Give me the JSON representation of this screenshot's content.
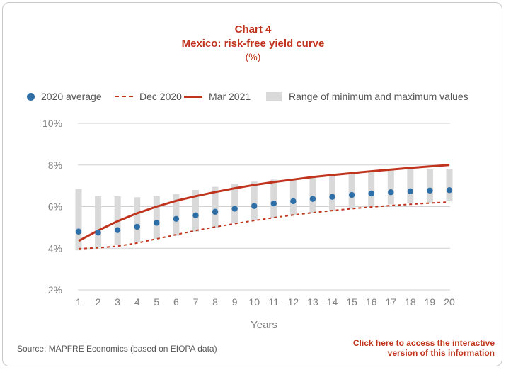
{
  "header": {
    "chart_number": "Chart 4",
    "title": "Mexico: risk-free yield curve",
    "subtitle": "(%)"
  },
  "legend": {
    "avg_label": "2020 average",
    "dec_label": "Dec 2020",
    "mar_label": "Mar 2021",
    "range_label": "Range of minimum and maximum values"
  },
  "footer": {
    "source": "Source: MAPFRE Economics (based on EIOPA data)",
    "link_line1": "Click here to access the interactive",
    "link_line2": "version of this information"
  },
  "colors": {
    "accent_red": "#c0341d",
    "dot_blue": "#2e6fa7",
    "range_gray": "#d9d9d9",
    "grid_gray": "#d0d0d0"
  },
  "chart_data": {
    "type": "line",
    "xlabel": "Years",
    "ylabel": "",
    "x": [
      1,
      2,
      3,
      4,
      5,
      6,
      7,
      8,
      9,
      10,
      11,
      12,
      13,
      14,
      15,
      16,
      17,
      18,
      19,
      20
    ],
    "ylim": [
      2,
      10
    ],
    "yticks": [
      "2%",
      "4%",
      "6%",
      "8%",
      "10%"
    ],
    "ytick_values": [
      2,
      4,
      6,
      8,
      10
    ],
    "grid": true,
    "legend_position": "top",
    "series": [
      {
        "name": "2020 average",
        "kind": "dots",
        "values": [
          4.8,
          4.75,
          4.87,
          5.03,
          5.22,
          5.41,
          5.58,
          5.75,
          5.9,
          6.03,
          6.15,
          6.26,
          6.37,
          6.47,
          6.56,
          6.63,
          6.69,
          6.74,
          6.77,
          6.79
        ]
      },
      {
        "name": "Dec 2020",
        "kind": "dashed",
        "values": [
          3.98,
          4.02,
          4.1,
          4.25,
          4.45,
          4.65,
          4.85,
          5.02,
          5.18,
          5.33,
          5.47,
          5.6,
          5.71,
          5.81,
          5.9,
          5.98,
          6.05,
          6.11,
          6.17,
          6.22
        ]
      },
      {
        "name": "Mar 2021",
        "kind": "solid",
        "values": [
          4.35,
          4.85,
          5.3,
          5.68,
          6.0,
          6.28,
          6.5,
          6.7,
          6.88,
          7.04,
          7.18,
          7.3,
          7.42,
          7.52,
          7.61,
          7.7,
          7.78,
          7.86,
          7.93,
          8.0
        ]
      }
    ],
    "range": {
      "name": "Range of minimum and maximum values",
      "min": [
        3.9,
        4.05,
        4.15,
        4.3,
        4.45,
        4.6,
        4.8,
        5.0,
        5.2,
        5.35,
        5.45,
        5.6,
        5.7,
        5.8,
        5.9,
        6.0,
        6.1,
        6.15,
        6.2,
        6.25
      ],
      "max": [
        6.85,
        6.5,
        6.5,
        6.45,
        6.5,
        6.6,
        6.8,
        6.95,
        7.1,
        7.2,
        7.3,
        7.3,
        7.4,
        7.5,
        7.6,
        7.7,
        7.75,
        7.8,
        7.8,
        7.8
      ]
    }
  }
}
